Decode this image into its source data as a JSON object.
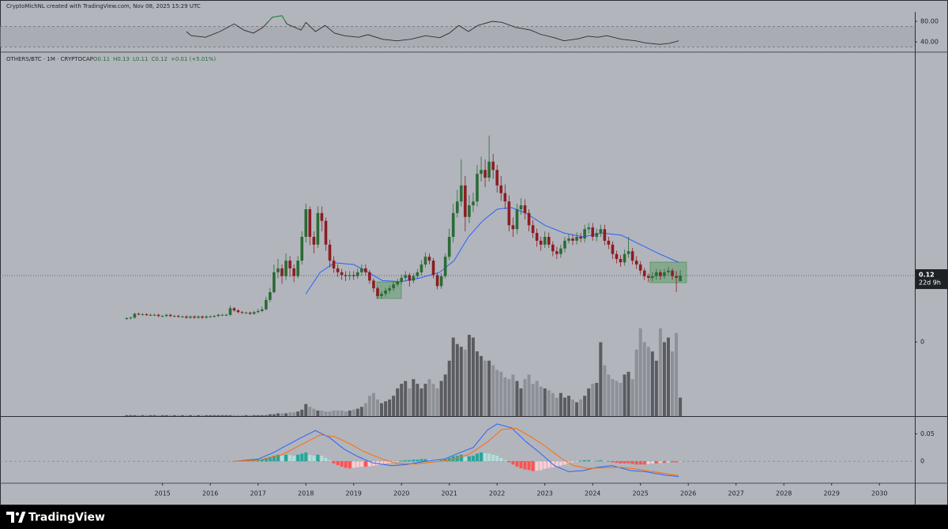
{
  "chart_data": {
    "type": "candlestick",
    "header": "CryptoMichNL created with TradingView.com, Nov 08, 2025 15:29 UTC",
    "title": "OTHERS/BTC · 1M · CRYPTOCAP",
    "legend_values": [
      "O0.11",
      "H0.13",
      "L0.11",
      "C0.12",
      "+0.01 (+5.01%)"
    ],
    "footer": "TradingView",
    "up_color": "#2a6b35",
    "down_color": "#8c1c22",
    "x": [
      2014.25,
      2014.333,
      2014.417,
      2014.5,
      2014.583,
      2014.667,
      2014.75,
      2014.833,
      2014.917,
      2015,
      2015.083,
      2015.167,
      2015.25,
      2015.333,
      2015.417,
      2015.5,
      2015.583,
      2015.667,
      2015.75,
      2015.833,
      2015.917,
      2016,
      2016.083,
      2016.167,
      2016.25,
      2016.333,
      2016.417,
      2016.5,
      2016.583,
      2016.667,
      2016.75,
      2016.833,
      2016.917,
      2017,
      2017.083,
      2017.167,
      2017.25,
      2017.333,
      2017.417,
      2017.5,
      2017.583,
      2017.667,
      2017.75,
      2017.833,
      2017.917,
      2018,
      2018.083,
      2018.167,
      2018.25,
      2018.333,
      2018.417,
      2018.5,
      2018.583,
      2018.667,
      2018.75,
      2018.833,
      2018.917,
      2019,
      2019.083,
      2019.167,
      2019.25,
      2019.333,
      2019.417,
      2019.5,
      2019.583,
      2019.667,
      2019.75,
      2019.833,
      2019.917,
      2020,
      2020.083,
      2020.167,
      2020.25,
      2020.333,
      2020.417,
      2020.5,
      2020.583,
      2020.667,
      2020.75,
      2020.833,
      2020.917,
      2021,
      2021.083,
      2021.167,
      2021.25,
      2021.333,
      2021.417,
      2021.5,
      2021.583,
      2021.667,
      2021.75,
      2021.833,
      2021.917,
      2022,
      2022.083,
      2022.167,
      2022.25,
      2022.333,
      2022.417,
      2022.5,
      2022.583,
      2022.667,
      2022.75,
      2022.833,
      2022.917,
      2023,
      2023.083,
      2023.167,
      2023.25,
      2023.333,
      2023.417,
      2023.5,
      2023.583,
      2023.667,
      2023.75,
      2023.833,
      2023.917,
      2024,
      2024.083,
      2024.167,
      2024.25,
      2024.333,
      2024.417,
      2024.5,
      2024.583,
      2024.667,
      2024.75,
      2024.833,
      2024.917,
      2025,
      2025.083,
      2025.167,
      2025.25,
      2025.333,
      2025.417,
      2025.5,
      2025.583,
      2025.667,
      2025.75,
      2025.833
    ],
    "open": [
      0.042,
      0.043,
      0.044,
      0.051,
      0.05,
      0.05,
      0.049,
      0.049,
      0.049,
      0.047,
      0.047,
      0.049,
      0.047,
      0.047,
      0.046,
      0.046,
      0.044,
      0.046,
      0.044,
      0.046,
      0.044,
      0.046,
      0.046,
      0.047,
      0.049,
      0.049,
      0.049,
      0.061,
      0.057,
      0.054,
      0.053,
      0.053,
      0.051,
      0.054,
      0.056,
      0.059,
      0.076,
      0.09,
      0.126,
      0.133,
      0.119,
      0.147,
      0.133,
      0.119,
      0.147,
      0.19,
      0.24,
      0.19,
      0.176,
      0.233,
      0.219,
      0.176,
      0.147,
      0.133,
      0.126,
      0.121,
      0.119,
      0.121,
      0.119,
      0.126,
      0.133,
      0.126,
      0.111,
      0.097,
      0.083,
      0.087,
      0.093,
      0.097,
      0.104,
      0.109,
      0.116,
      0.121,
      0.111,
      0.119,
      0.126,
      0.14,
      0.154,
      0.147,
      0.121,
      0.101,
      0.119,
      0.154,
      0.19,
      0.233,
      0.254,
      0.283,
      0.226,
      0.247,
      0.254,
      0.304,
      0.311,
      0.297,
      0.326,
      0.311,
      0.283,
      0.269,
      0.254,
      0.211,
      0.204,
      0.24,
      0.247,
      0.233,
      0.211,
      0.197,
      0.183,
      0.176,
      0.19,
      0.176,
      0.164,
      0.159,
      0.169,
      0.183,
      0.187,
      0.183,
      0.19,
      0.187,
      0.204,
      0.207,
      0.19,
      0.197,
      0.204,
      0.183,
      0.176,
      0.159,
      0.15,
      0.144,
      0.159,
      0.164,
      0.147,
      0.14,
      0.129,
      0.119,
      0.116,
      0.119,
      0.126,
      0.119,
      0.126,
      0.129,
      0.119,
      0.11
    ],
    "high": [
      0.045,
      0.046,
      0.053,
      0.053,
      0.052,
      0.052,
      0.051,
      0.051,
      0.051,
      0.049,
      0.051,
      0.051,
      0.049,
      0.049,
      0.048,
      0.048,
      0.048,
      0.048,
      0.048,
      0.048,
      0.048,
      0.048,
      0.049,
      0.051,
      0.051,
      0.051,
      0.066,
      0.063,
      0.059,
      0.056,
      0.055,
      0.055,
      0.056,
      0.06,
      0.064,
      0.082,
      0.098,
      0.14,
      0.15,
      0.14,
      0.16,
      0.155,
      0.14,
      0.155,
      0.2,
      0.25,
      0.245,
      0.2,
      0.245,
      0.245,
      0.225,
      0.185,
      0.155,
      0.14,
      0.132,
      0.128,
      0.128,
      0.128,
      0.132,
      0.14,
      0.14,
      0.13,
      0.115,
      0.1,
      0.092,
      0.098,
      0.102,
      0.11,
      0.114,
      0.122,
      0.128,
      0.125,
      0.124,
      0.132,
      0.148,
      0.162,
      0.16,
      0.152,
      0.125,
      0.124,
      0.16,
      0.205,
      0.25,
      0.275,
      0.33,
      0.3,
      0.265,
      0.27,
      0.32,
      0.335,
      0.33,
      0.373,
      0.34,
      0.32,
      0.3,
      0.285,
      0.265,
      0.225,
      0.25,
      0.26,
      0.258,
      0.24,
      0.22,
      0.205,
      0.19,
      0.2,
      0.198,
      0.182,
      0.172,
      0.176,
      0.19,
      0.195,
      0.195,
      0.198,
      0.197,
      0.212,
      0.215,
      0.215,
      0.205,
      0.212,
      0.212,
      0.19,
      0.182,
      0.165,
      0.157,
      0.167,
      0.19,
      0.17,
      0.155,
      0.146,
      0.134,
      0.124,
      0.126,
      0.132,
      0.131,
      0.132,
      0.136,
      0.133,
      0.128,
      0.13
    ],
    "low": [
      0.04,
      0.041,
      0.042,
      0.048,
      0.048,
      0.047,
      0.047,
      0.047,
      0.045,
      0.045,
      0.045,
      0.045,
      0.045,
      0.044,
      0.044,
      0.042,
      0.042,
      0.042,
      0.042,
      0.042,
      0.042,
      0.044,
      0.044,
      0.045,
      0.047,
      0.047,
      0.047,
      0.055,
      0.052,
      0.051,
      0.051,
      0.049,
      0.049,
      0.052,
      0.054,
      0.057,
      0.072,
      0.088,
      0.115,
      0.105,
      0.112,
      0.118,
      0.108,
      0.115,
      0.14,
      0.18,
      0.175,
      0.16,
      0.17,
      0.2,
      0.165,
      0.135,
      0.125,
      0.118,
      0.112,
      0.11,
      0.112,
      0.112,
      0.114,
      0.12,
      0.12,
      0.105,
      0.09,
      0.078,
      0.078,
      0.082,
      0.088,
      0.092,
      0.1,
      0.104,
      0.11,
      0.1,
      0.106,
      0.114,
      0.12,
      0.135,
      0.14,
      0.115,
      0.095,
      0.096,
      0.115,
      0.148,
      0.18,
      0.225,
      0.245,
      0.2,
      0.215,
      0.235,
      0.245,
      0.29,
      0.28,
      0.29,
      0.295,
      0.27,
      0.255,
      0.24,
      0.2,
      0.19,
      0.195,
      0.23,
      0.222,
      0.2,
      0.188,
      0.172,
      0.165,
      0.17,
      0.17,
      0.155,
      0.15,
      0.152,
      0.162,
      0.178,
      0.175,
      0.176,
      0.18,
      0.18,
      0.196,
      0.183,
      0.182,
      0.19,
      0.175,
      0.168,
      0.15,
      0.142,
      0.136,
      0.138,
      0.152,
      0.14,
      0.132,
      0.122,
      0.112,
      0.108,
      0.11,
      0.112,
      0.112,
      0.114,
      0.12,
      0.112,
      0.09,
      0.11
    ],
    "close": [
      0.043,
      0.044,
      0.051,
      0.05,
      0.05,
      0.049,
      0.049,
      0.049,
      0.047,
      0.047,
      0.049,
      0.047,
      0.047,
      0.046,
      0.046,
      0.044,
      0.046,
      0.044,
      0.046,
      0.044,
      0.046,
      0.046,
      0.047,
      0.049,
      0.049,
      0.049,
      0.061,
      0.057,
      0.054,
      0.053,
      0.053,
      0.051,
      0.054,
      0.056,
      0.059,
      0.076,
      0.09,
      0.126,
      0.133,
      0.119,
      0.147,
      0.133,
      0.119,
      0.147,
      0.19,
      0.24,
      0.19,
      0.176,
      0.233,
      0.219,
      0.176,
      0.147,
      0.133,
      0.126,
      0.121,
      0.119,
      0.121,
      0.119,
      0.126,
      0.133,
      0.126,
      0.111,
      0.097,
      0.083,
      0.087,
      0.093,
      0.097,
      0.104,
      0.109,
      0.116,
      0.121,
      0.111,
      0.119,
      0.126,
      0.14,
      0.154,
      0.147,
      0.121,
      0.101,
      0.119,
      0.154,
      0.19,
      0.233,
      0.254,
      0.283,
      0.226,
      0.247,
      0.254,
      0.304,
      0.311,
      0.297,
      0.326,
      0.311,
      0.283,
      0.269,
      0.254,
      0.211,
      0.204,
      0.24,
      0.247,
      0.233,
      0.211,
      0.197,
      0.183,
      0.176,
      0.19,
      0.176,
      0.164,
      0.159,
      0.169,
      0.183,
      0.187,
      0.183,
      0.19,
      0.187,
      0.204,
      0.207,
      0.19,
      0.197,
      0.204,
      0.183,
      0.176,
      0.159,
      0.15,
      0.144,
      0.159,
      0.164,
      0.147,
      0.14,
      0.129,
      0.119,
      0.116,
      0.119,
      0.126,
      0.119,
      0.126,
      0.129,
      0.119,
      0.116,
      0.12
    ],
    "xlim": [
      2011.6,
      2030.74
    ],
    "xticks": [
      2015,
      2016,
      2017,
      2018,
      2019,
      2020,
      2021,
      2022,
      2023,
      2024,
      2025,
      2026,
      2027,
      2028,
      2029,
      2030
    ],
    "ylim": [
      -0.134,
      0.504
    ],
    "yticks": [
      0
    ],
    "last_price": 0.12,
    "countdown": "22d 9h",
    "moving_average": {
      "color": "#2962ff",
      "x": [
        2018.0,
        2018.3,
        2018.6,
        2019.0,
        2019.3,
        2019.6,
        2020.0,
        2020.4,
        2020.8,
        2021.1,
        2021.4,
        2021.7,
        2022.0,
        2022.3,
        2022.6,
        2023.0,
        2023.4,
        2023.8,
        2024.2,
        2024.6,
        2025.0,
        2025.4,
        2025.8
      ],
      "values": [
        0.087,
        0.126,
        0.143,
        0.14,
        0.126,
        0.111,
        0.109,
        0.116,
        0.126,
        0.147,
        0.19,
        0.219,
        0.24,
        0.243,
        0.233,
        0.211,
        0.197,
        0.19,
        0.197,
        0.193,
        0.176,
        0.159,
        0.144
      ]
    },
    "volume": {
      "ylim": [
        0,
        100
      ],
      "up_color": "#5a5c61",
      "down_color": "#8d9097",
      "values": [
        1,
        1,
        1,
        1,
        1,
        1,
        1,
        1,
        1,
        1,
        1,
        1,
        1,
        1,
        1,
        1,
        1,
        1,
        1,
        1,
        1,
        1,
        1,
        1,
        1,
        1,
        1,
        1,
        1,
        1,
        1,
        1,
        1,
        1,
        1,
        1,
        2,
        2,
        3,
        3,
        3,
        4,
        4,
        5,
        7,
        13,
        10,
        8,
        6,
        6,
        5,
        5,
        6,
        6,
        6,
        5,
        6,
        7,
        8,
        10,
        14,
        22,
        25,
        18,
        14,
        16,
        18,
        22,
        30,
        35,
        38,
        30,
        40,
        35,
        30,
        35,
        40,
        35,
        30,
        38,
        45,
        60,
        85,
        78,
        75,
        72,
        88,
        85,
        70,
        65,
        60,
        60,
        55,
        50,
        48,
        42,
        40,
        45,
        38,
        30,
        40,
        45,
        35,
        38,
        32,
        30,
        28,
        25,
        20,
        25,
        20,
        22,
        18,
        15,
        18,
        22,
        30,
        35,
        36,
        80,
        55,
        45,
        40,
        38,
        36,
        45,
        48,
        40,
        72,
        95,
        80,
        75,
        70,
        60,
        95,
        80,
        85,
        70,
        90,
        20
      ]
    },
    "rsi": {
      "color": "#2b2d31",
      "overbought_color": "#2e8b3e",
      "ylim": [
        21.5,
        98.5
      ],
      "yticks": [
        {
          "value": 40,
          "label": "40.00"
        },
        {
          "value": 80,
          "label": "80.00"
        }
      ],
      "band": [
        30,
        70
      ],
      "x": [
        2015.5,
        2015.6,
        2015.9,
        2016.2,
        2016.5,
        2016.7,
        2016.9,
        2017.1,
        2017.3,
        2017.5,
        2017.6,
        2017.9,
        2018.0,
        2018.2,
        2018.4,
        2018.6,
        2018.8,
        2019.1,
        2019.3,
        2019.6,
        2019.9,
        2020.2,
        2020.5,
        2020.8,
        2021.0,
        2021.2,
        2021.4,
        2021.6,
        2021.9,
        2022.1,
        2022.4,
        2022.7,
        2022.9,
        2023.2,
        2023.4,
        2023.7,
        2023.9,
        2024.1,
        2024.3,
        2024.6,
        2024.9,
        2025.1,
        2025.4,
        2025.6,
        2025.8
      ],
      "values": [
        60,
        52,
        49,
        60,
        75,
        63,
        57,
        68,
        88,
        91,
        75,
        63,
        78,
        60,
        72,
        57,
        52,
        49,
        54,
        45,
        42,
        45,
        52,
        48,
        57,
        72,
        60,
        72,
        80,
        78,
        68,
        63,
        55,
        48,
        42,
        46,
        51,
        49,
        52,
        45,
        42,
        38,
        35,
        37,
        42
      ]
    },
    "macd": {
      "ylim": [
        -0.04,
        0.078
      ],
      "yticks": [
        0,
        0.05
      ],
      "macd_color": "#2962ff",
      "signal_color": "#ff6d00",
      "histogram_colors": [
        "#26a69a",
        "#b2dfdb",
        "#ff5252",
        "#ffcdd2"
      ],
      "macd_x": [
        2016.5,
        2017.0,
        2017.3,
        2017.6,
        2017.9,
        2018.2,
        2018.5,
        2018.8,
        2019.1,
        2019.4,
        2019.8,
        2020.1,
        2020.5,
        2020.9,
        2021.2,
        2021.5,
        2021.8,
        2022.0,
        2022.3,
        2022.6,
        2022.9,
        2023.2,
        2023.5,
        2023.8,
        2024.1,
        2024.4,
        2024.8,
        2025.1,
        2025.5,
        2025.8
      ],
      "macd": [
        0,
        0.004,
        0.015,
        0.029,
        0.043,
        0.056,
        0.043,
        0.022,
        0.008,
        -0.003,
        -0.008,
        -0.006,
        0,
        0.004,
        0.015,
        0.025,
        0.057,
        0.068,
        0.061,
        0.036,
        0.015,
        -0.008,
        -0.019,
        -0.017,
        -0.011,
        -0.008,
        -0.017,
        -0.019,
        -0.025,
        -0.028
      ],
      "signal_x": [
        2016.5,
        2017.0,
        2017.5,
        2017.9,
        2018.3,
        2018.6,
        2018.9,
        2019.2,
        2019.6,
        2019.9,
        2020.3,
        2020.7,
        2021.0,
        2021.4,
        2021.8,
        2022.1,
        2022.4,
        2022.7,
        2023.0,
        2023.3,
        2023.6,
        2023.9,
        2024.2,
        2024.6,
        2024.9,
        2025.2,
        2025.5,
        2025.8
      ],
      "signal": [
        0,
        0.002,
        0.012,
        0.03,
        0.048,
        0.045,
        0.033,
        0.018,
        0.004,
        -0.004,
        -0.005,
        -0.001,
        0.002,
        0.012,
        0.035,
        0.058,
        0.06,
        0.045,
        0.028,
        0.008,
        -0.008,
        -0.013,
        -0.012,
        -0.011,
        -0.014,
        -0.018,
        -0.022,
        -0.026
      ],
      "histogram": [
        0,
        0,
        0,
        0,
        0,
        0,
        0,
        0,
        0,
        0,
        0,
        0,
        0,
        0,
        0,
        0,
        0,
        0,
        0,
        0,
        0,
        0,
        0,
        0,
        0,
        0,
        0,
        0,
        0,
        0.001,
        0.002,
        0.002,
        0.002,
        0.003,
        0.004,
        0.006,
        0.008,
        0.01,
        0.012,
        0.01,
        0.012,
        0.011,
        0.01,
        0.012,
        0.014,
        0.016,
        0.012,
        0.01,
        0.012,
        0.01,
        0.006,
        0.002,
        -0.004,
        -0.007,
        -0.01,
        -0.012,
        -0.013,
        -0.012,
        -0.011,
        -0.01,
        -0.01,
        -0.009,
        -0.008,
        -0.007,
        -0.005,
        -0.004,
        -0.003,
        -0.002,
        -0.001,
        0.001,
        0.002,
        0.002,
        0.003,
        0.003,
        0.004,
        0.004,
        0.003,
        0.002,
        0.001,
        0.002,
        0.004,
        0.006,
        0.009,
        0.01,
        0.012,
        0.008,
        0.009,
        0.01,
        0.014,
        0.016,
        0.015,
        0.014,
        0.012,
        0.01,
        0.006,
        0.002,
        -0.002,
        -0.006,
        -0.01,
        -0.013,
        -0.015,
        -0.016,
        -0.018,
        -0.017,
        -0.016,
        -0.014,
        -0.012,
        -0.011,
        -0.01,
        -0.008,
        -0.006,
        -0.004,
        -0.002,
        -0.001,
        0.001,
        0.002,
        0.002,
        0.001,
        0.001,
        0.002,
        0.001,
        -0.001,
        -0.002,
        -0.003,
        -0.004,
        -0.004,
        -0.004,
        -0.005,
        -0.006,
        -0.006,
        -0.006,
        -0.005,
        -0.004,
        -0.004,
        -0.003,
        -0.003,
        -0.002,
        -0.002,
        -0.002,
        -0.001
      ]
    }
  }
}
